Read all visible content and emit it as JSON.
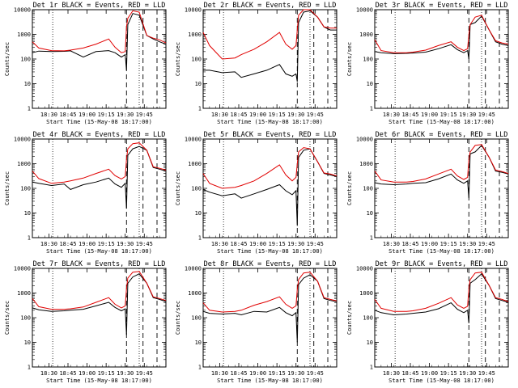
{
  "figure": {
    "x_tick_labels": [
      "18:30",
      "18:45",
      "19:00",
      "19:15",
      "19:30",
      "19:45"
    ],
    "y_tick_labels": [
      "1",
      "10",
      "100",
      "1000",
      "10000"
    ],
    "y_axis_label": "Counts/sec",
    "x_axis_label": "Start Time (15-May-08 18:17:00)",
    "colors": {
      "events": "#000000",
      "lld": "#e00000",
      "axes": "#000000"
    }
  },
  "chart_data": [
    {
      "type": "line",
      "title": "Det 1r BLACK = Events, RED = LLD",
      "yscale": "log",
      "ylim": [
        1,
        10000
      ],
      "x_minutes": [
        0,
        5,
        15,
        25,
        30,
        40,
        50,
        60,
        65,
        70,
        73,
        74,
        75,
        79,
        84,
        90,
        95,
        100,
        105
      ],
      "series": [
        {
          "name": "Events",
          "color": "#000000",
          "values": [
            180,
            210,
            200,
            205,
            215,
            120,
            200,
            220,
            180,
            120,
            150,
            35,
            2500,
            7000,
            6000,
            900,
            650,
            500,
            400
          ]
        },
        {
          "name": "LLD",
          "color": "#e00000",
          "values": [
            500,
            280,
            220,
            215,
            230,
            280,
            400,
            650,
            300,
            180,
            200,
            2000,
            4500,
            9000,
            8000,
            900,
            700,
            600,
            450
          ]
        }
      ],
      "dashed_x": [
        74,
        87,
        98
      ],
      "dotted_x": [
        16,
        84
      ]
    },
    {
      "type": "line",
      "title": "Det 2r BLACK = Events, RED = LLD",
      "yscale": "log",
      "ylim": [
        1,
        10000
      ],
      "x_minutes": [
        0,
        5,
        15,
        25,
        30,
        40,
        50,
        60,
        65,
        70,
        73,
        74,
        75,
        79,
        84,
        90,
        95,
        100,
        105
      ],
      "series": [
        {
          "name": "Events",
          "color": "#000000",
          "values": [
            35,
            35,
            28,
            30,
            18,
            25,
            35,
            60,
            25,
            20,
            25,
            12,
            3000,
            8000,
            9000,
            5000,
            2000,
            1500,
            1500
          ]
        },
        {
          "name": "LLD",
          "color": "#e00000",
          "values": [
            1200,
            350,
            100,
            110,
            150,
            250,
            500,
            1200,
            400,
            250,
            350,
            1500,
            6000,
            10000,
            10000,
            5000,
            2000,
            1800,
            1800
          ]
        }
      ],
      "dashed_x": [
        74,
        87,
        98
      ],
      "dotted_x": [
        16,
        84
      ]
    },
    {
      "type": "line",
      "title": "Det 3r BLACK = Events, RED = LLD",
      "yscale": "log",
      "ylim": [
        1,
        10000
      ],
      "x_minutes": [
        0,
        5,
        15,
        25,
        30,
        40,
        50,
        60,
        65,
        70,
        73,
        74,
        75,
        79,
        84,
        90,
        95,
        100,
        105
      ],
      "series": [
        {
          "name": "Events",
          "color": "#000000",
          "values": [
            200,
            180,
            165,
            170,
            175,
            190,
            260,
            380,
            240,
            180,
            220,
            100,
            2500,
            3000,
            5500,
            1500,
            500,
            400,
            350
          ]
        },
        {
          "name": "LLD",
          "color": "#e00000",
          "values": [
            600,
            220,
            180,
            180,
            190,
            230,
            350,
            500,
            300,
            220,
            260,
            1000,
            2500,
            5000,
            6000,
            1500,
            550,
            450,
            400
          ]
        }
      ],
      "dashed_x": [
        74,
        87,
        98
      ],
      "dotted_x": [
        16,
        84
      ]
    },
    {
      "type": "line",
      "title": "Det 4r BLACK = Events, RED = LLD",
      "yscale": "log",
      "ylim": [
        1,
        10000
      ],
      "x_minutes": [
        0,
        5,
        15,
        25,
        30,
        40,
        50,
        60,
        65,
        70,
        73,
        74,
        75,
        79,
        84,
        90,
        95,
        100,
        105
      ],
      "series": [
        {
          "name": "Events",
          "color": "#000000",
          "values": [
            180,
            160,
            130,
            150,
            90,
            140,
            180,
            260,
            150,
            110,
            160,
            15,
            2200,
            4000,
            5000,
            3500,
            700,
            600,
            500
          ]
        },
        {
          "name": "LLD",
          "color": "#e00000",
          "values": [
            500,
            250,
            160,
            180,
            200,
            260,
            400,
            600,
            330,
            240,
            300,
            1500,
            4000,
            6500,
            7000,
            3500,
            750,
            650,
            550
          ]
        }
      ],
      "dashed_x": [
        74,
        87,
        98
      ],
      "dotted_x": [
        16,
        84
      ]
    },
    {
      "type": "line",
      "title": "Det 5r BLACK = Events, RED = LLD",
      "yscale": "log",
      "ylim": [
        1,
        10000
      ],
      "x_minutes": [
        0,
        5,
        15,
        25,
        30,
        40,
        50,
        60,
        65,
        70,
        73,
        74,
        75,
        79,
        84,
        90,
        95,
        100,
        105
      ],
      "series": [
        {
          "name": "Events",
          "color": "#000000",
          "values": [
            90,
            70,
            50,
            60,
            40,
            60,
            90,
            140,
            80,
            55,
            80,
            3,
            1800,
            3500,
            4000,
            1200,
            400,
            350,
            300
          ]
        },
        {
          "name": "LLD",
          "color": "#e00000",
          "values": [
            400,
            160,
            100,
            110,
            130,
            200,
            400,
            900,
            350,
            200,
            280,
            1000,
            3000,
            4500,
            4000,
            1200,
            420,
            380,
            320
          ]
        }
      ],
      "dashed_x": [
        74,
        87,
        98
      ],
      "dotted_x": [
        16,
        84
      ]
    },
    {
      "type": "line",
      "title": "Det 6r BLACK = Events, RED = LLD",
      "yscale": "log",
      "ylim": [
        1,
        10000
      ],
      "x_minutes": [
        0,
        5,
        15,
        25,
        30,
        40,
        50,
        60,
        65,
        70,
        73,
        74,
        75,
        79,
        84,
        90,
        95,
        100,
        105
      ],
      "series": [
        {
          "name": "Events",
          "color": "#000000",
          "values": [
            170,
            150,
            140,
            150,
            160,
            170,
            240,
            380,
            220,
            160,
            200,
            40,
            2500,
            3000,
            5500,
            1800,
            500,
            450,
            380
          ]
        },
        {
          "name": "LLD",
          "color": "#e00000",
          "values": [
            500,
            220,
            180,
            180,
            190,
            240,
            380,
            600,
            320,
            230,
            280,
            1500,
            3000,
            5500,
            6000,
            1800,
            550,
            480,
            400
          ]
        }
      ],
      "dashed_x": [
        74,
        87,
        98
      ],
      "dotted_x": [
        16,
        84
      ]
    },
    {
      "type": "line",
      "title": "Det 7r BLACK = Events, RED = LLD",
      "yscale": "log",
      "ylim": [
        1,
        10000
      ],
      "x_minutes": [
        0,
        5,
        15,
        25,
        30,
        40,
        50,
        60,
        65,
        70,
        73,
        74,
        75,
        79,
        84,
        90,
        95,
        100,
        105
      ],
      "series": [
        {
          "name": "Events",
          "color": "#000000",
          "values": [
            250,
            210,
            180,
            190,
            200,
            220,
            300,
            420,
            260,
            190,
            230,
            20,
            2500,
            4500,
            6000,
            2500,
            650,
            550,
            450
          ]
        },
        {
          "name": "LLD",
          "color": "#e00000",
          "values": [
            600,
            280,
            220,
            220,
            230,
            270,
            420,
            650,
            350,
            250,
            300,
            1500,
            4000,
            7000,
            7500,
            2500,
            700,
            600,
            500
          ]
        }
      ],
      "dashed_x": [
        74,
        87,
        98
      ],
      "dotted_x": [
        16,
        84
      ]
    },
    {
      "type": "line",
      "title": "Det 8r BLACK = Events, RED = LLD",
      "yscale": "log",
      "ylim": [
        1,
        10000
      ],
      "x_minutes": [
        0,
        5,
        15,
        25,
        30,
        40,
        50,
        60,
        65,
        70,
        73,
        74,
        75,
        79,
        84,
        90,
        95,
        100,
        105
      ],
      "series": [
        {
          "name": "Events",
          "color": "#000000",
          "values": [
            180,
            150,
            140,
            150,
            130,
            180,
            170,
            260,
            160,
            120,
            160,
            10,
            2200,
            4000,
            5500,
            3000,
            600,
            500,
            450
          ]
        },
        {
          "name": "LLD",
          "color": "#e00000",
          "values": [
            400,
            200,
            170,
            180,
            200,
            320,
            450,
            700,
            350,
            240,
            300,
            1400,
            3500,
            6500,
            7000,
            3000,
            650,
            550,
            480
          ]
        }
      ],
      "dashed_x": [
        74,
        87,
        98
      ],
      "dotted_x": [
        16,
        84
      ]
    },
    {
      "type": "line",
      "title": "Det 9r BLACK = Events, RED = LLD",
      "yscale": "log",
      "ylim": [
        1,
        10000
      ],
      "x_minutes": [
        0,
        5,
        15,
        25,
        30,
        40,
        50,
        60,
        65,
        70,
        73,
        74,
        75,
        79,
        84,
        90,
        95,
        100,
        105
      ],
      "series": [
        {
          "name": "Events",
          "color": "#000000",
          "values": [
            200,
            160,
            130,
            140,
            150,
            170,
            230,
            400,
            220,
            160,
            200,
            60,
            2500,
            3500,
            6000,
            2000,
            600,
            500,
            420
          ]
        },
        {
          "name": "LLD",
          "color": "#e00000",
          "values": [
            550,
            240,
            180,
            180,
            190,
            240,
            380,
            650,
            330,
            240,
            290,
            1500,
            3500,
            6500,
            7000,
            2000,
            650,
            550,
            450
          ]
        }
      ],
      "dashed_x": [
        74,
        87,
        98
      ],
      "dotted_x": [
        16,
        84
      ]
    }
  ]
}
